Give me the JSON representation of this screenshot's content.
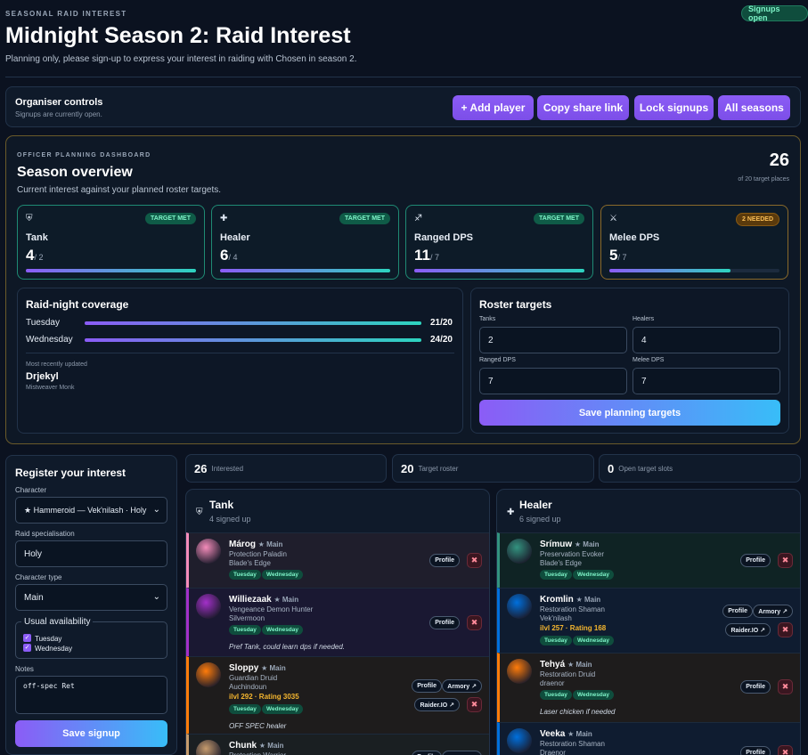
{
  "header": {
    "kicker": "SEASONAL RAID INTEREST",
    "badge": "Signups open",
    "title": "Midnight Season 2: Raid Interest",
    "subtitle": "Planning only, please sign-up to express your interest in raiding with Chosen in season 2."
  },
  "organiser": {
    "title": "Organiser controls",
    "status": "Signups are currently open.",
    "buttons": [
      "+ Add player",
      "Copy share link",
      "Lock signups",
      "All seasons"
    ]
  },
  "dashboard": {
    "kicker": "OFFICER PLANNING DASHBOARD",
    "title": "Season overview",
    "subtitle": "Current interest against your planned roster targets.",
    "total": "26",
    "total_sub": "of 20 target places",
    "roles": [
      {
        "icon": "shield-icon",
        "glyph": "⛨",
        "name": "Tank",
        "count": "4",
        "target": "/ 2",
        "fill": 1.0,
        "status": "TARGET MET",
        "state": "met"
      },
      {
        "icon": "cross-icon",
        "glyph": "✚",
        "name": "Healer",
        "count": "6",
        "target": "/ 4",
        "fill": 1.0,
        "status": "TARGET MET",
        "state": "met"
      },
      {
        "icon": "bow-icon",
        "glyph": "♐",
        "name": "Ranged DPS",
        "count": "11",
        "target": "/ 7",
        "fill": 1.0,
        "status": "TARGET MET",
        "state": "met"
      },
      {
        "icon": "swords-icon",
        "glyph": "⚔",
        "name": "Melee DPS",
        "count": "5",
        "target": "/ 7",
        "fill": 0.714,
        "status": "2 NEEDED",
        "state": "need"
      }
    ],
    "coverage": {
      "title": "Raid-night coverage",
      "days": [
        {
          "name": "Tuesday",
          "value": "21/20",
          "fill": 1.0
        },
        {
          "name": "Wednesday",
          "value": "24/20",
          "fill": 1.0
        }
      ],
      "recent_label": "Most recently updated",
      "recent_name": "Drjekyl",
      "recent_spec": "Mistweaver Monk"
    },
    "targets": {
      "title": "Roster targets",
      "fields": [
        {
          "label": "Tanks",
          "value": "2"
        },
        {
          "label": "Healers",
          "value": "4"
        },
        {
          "label": "Ranged DPS",
          "value": "7"
        },
        {
          "label": "Melee DPS",
          "value": "7"
        }
      ],
      "save": "Save planning targets"
    }
  },
  "register": {
    "title": "Register your interest",
    "character_label": "Character",
    "character_value": "★ Hammeroid — Vek'nilash · Holy",
    "spec_label": "Raid specialisation",
    "spec_value": "Holy",
    "type_label": "Character type",
    "type_value": "Main",
    "avail_label": "Usual availability",
    "avail_days": [
      "Tuesday",
      "Wednesday"
    ],
    "notes_label": "Notes",
    "notes_value": "off-spec Ret",
    "submit": "Save signup"
  },
  "stats": [
    {
      "value": "26",
      "label": "Interested"
    },
    {
      "value": "20",
      "label": "Target roster"
    },
    {
      "value": "0",
      "label": "Open target slots"
    }
  ],
  "columns": {
    "tank": {
      "title": "Tank",
      "sub": "4 signed up",
      "players": [
        {
          "name": "Márog",
          "main": "★ Main",
          "spec": "Protection Paladin",
          "realm": "Blade's Edge",
          "days": [
            "Tuesday",
            "Wednesday"
          ],
          "color": "#f48cba"
        },
        {
          "name": "Williezaak",
          "main": "★ Main",
          "spec": "Vengeance Demon Hunter",
          "realm": "Silvermoon",
          "days": [
            "Tuesday",
            "Wednesday"
          ],
          "note": "Pref Tank, could learn dps if needed.",
          "color": "#a330c9"
        },
        {
          "name": "Sloppy",
          "main": "★ Main",
          "spec": "Guardian Druid",
          "realm": "Auchindoun",
          "ilvl": "ilvl 292 · Rating 3035",
          "days": [
            "Tuesday",
            "Wednesday"
          ],
          "note": "OFF SPEC healer",
          "color": "#ff7c0a"
        },
        {
          "name": "Chunk",
          "main": "★ Main",
          "spec": "Protection Warrior",
          "color": "#c69b6d"
        }
      ]
    },
    "healer": {
      "title": "Healer",
      "sub": "6 signed up",
      "players": [
        {
          "name": "Srímuw",
          "main": "★ Main",
          "spec": "Preservation Evoker",
          "realm": "Blade's Edge",
          "days": [
            "Tuesday",
            "Wednesday"
          ],
          "color": "#33937f"
        },
        {
          "name": "Kromlin",
          "main": "★ Main",
          "spec": "Restoration Shaman",
          "realm": "Vek'nilash",
          "ilvl": "ilvl 257 · Rating 168",
          "days": [
            "Tuesday",
            "Wednesday"
          ],
          "color": "#0070dd"
        },
        {
          "name": "Tehyá",
          "main": "★ Main",
          "spec": "Restoration Druid",
          "realm": "draenor",
          "days": [
            "Tuesday",
            "Wednesday"
          ],
          "note": "Laser chicken if needed",
          "color": "#ff7c0a"
        },
        {
          "name": "Veeka",
          "main": "★ Main",
          "spec": "Restoration Shaman",
          "realm": "Draenor",
          "color": "#0070dd"
        }
      ]
    },
    "buttons": {
      "profile": "Profile",
      "armory": "Armory ↗",
      "raiderio": "Raider.IO ↗",
      "remove": "✖"
    }
  }
}
